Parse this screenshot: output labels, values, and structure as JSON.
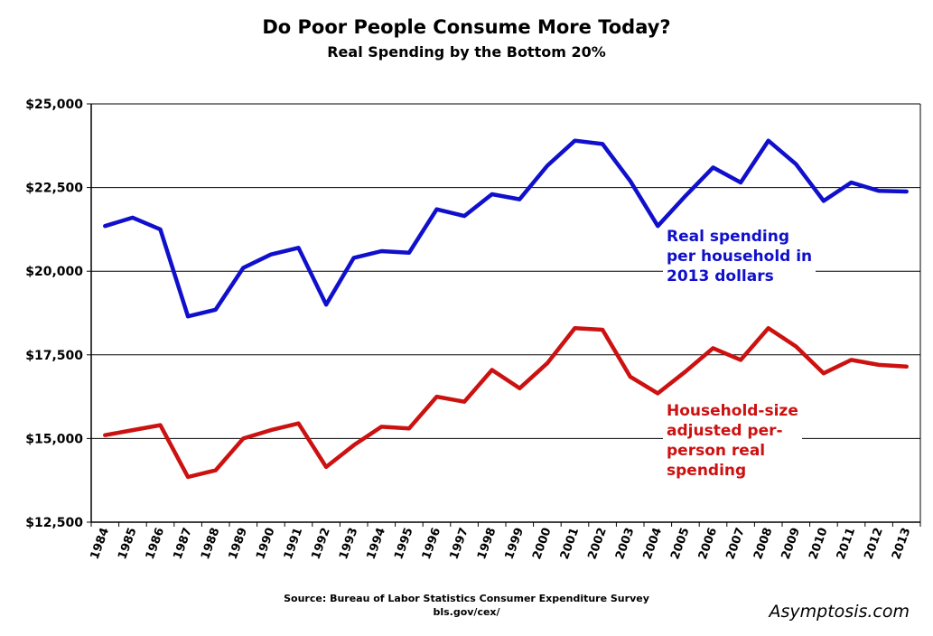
{
  "title": "Do Poor People Consume More Today?",
  "subtitle": "Real Spending by the Bottom 20%",
  "source_line1": "Source: Bureau of Labor Statistics Consumer Expenditure Survey",
  "source_line2": "bls.gov/cex/",
  "brand": "Asymptosis.com",
  "annotations": {
    "household_line1": "Real spending",
    "household_line2": "per household in",
    "household_line3": "2013 dollars",
    "person_line1": "Household-size",
    "person_line2": "adjusted per-",
    "person_line3": "person real",
    "person_line4": "spending"
  },
  "chart_data": {
    "type": "line",
    "title": "Do Poor People Consume More Today?",
    "subtitle": "Real Spending by the Bottom 20%",
    "x": [
      "1984",
      "1985",
      "1986",
      "1987",
      "1988",
      "1989",
      "1990",
      "1991",
      "1992",
      "1993",
      "1994",
      "1995",
      "1996",
      "1997",
      "1998",
      "1999",
      "2000",
      "2001",
      "2002",
      "2003",
      "2004",
      "2005",
      "2006",
      "2007",
      "2008",
      "2009",
      "2010",
      "2011",
      "2012",
      "2013"
    ],
    "ylim": [
      12500,
      25000
    ],
    "yticks": [
      12500,
      15000,
      17500,
      20000,
      22500,
      25000
    ],
    "ytick_labels": [
      "$12,500",
      "$15,000",
      "$17,500",
      "$20,000",
      "$22,500",
      "$25,000"
    ],
    "grid": "horizontal",
    "series": [
      {
        "name": "Real spending per household in 2013 dollars",
        "color": "#1010cc",
        "values": [
          21350,
          21600,
          21250,
          18650,
          18850,
          20100,
          20500,
          20700,
          19000,
          20400,
          20600,
          20550,
          21850,
          21650,
          22300,
          22150,
          23150,
          23900,
          23800,
          22700,
          21350,
          22250,
          23100,
          22650,
          23900,
          23200,
          22100,
          22650,
          22400,
          22380
        ]
      },
      {
        "name": "Household-size adjusted per-person real spending",
        "color": "#cc1111",
        "values": [
          15100,
          15250,
          15400,
          13850,
          14050,
          15000,
          15250,
          15450,
          14150,
          14800,
          15350,
          15300,
          16250,
          16100,
          17050,
          16500,
          17250,
          18300,
          18250,
          16850,
          16350,
          17000,
          17700,
          17350,
          18300,
          17750,
          16950,
          17350,
          17200,
          17150
        ]
      }
    ]
  }
}
